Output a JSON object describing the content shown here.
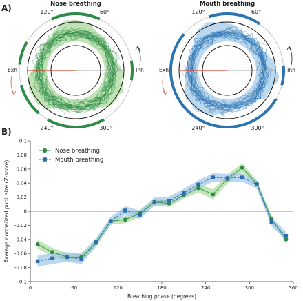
{
  "panel_labels": {
    "a": "A)",
    "b": "B)"
  },
  "polar_panels": [
    {
      "title": "Nose breathing",
      "color": "#2e8b47",
      "fill_color": "#bfe3b4",
      "angle_labels": [
        "120°",
        "60°",
        "240°",
        "300°"
      ],
      "left_label": "Exh",
      "right_label": "Inh",
      "arrow_left_color": "#d9705a",
      "arrow_right_color": "#333333"
    },
    {
      "title": "Mouth breathing",
      "color": "#2b74b3",
      "fill_color": "#bcd8ee",
      "angle_labels": [
        "120°",
        "60°",
        "240°",
        "300°"
      ],
      "left_label": "Exh",
      "right_label": "Inh",
      "arrow_left_color": "#d9705a",
      "arrow_right_color": "#333333"
    }
  ],
  "chart_data": {
    "type": "line",
    "xlabel": "Breathing phase (degrees)",
    "ylabel": "Average normalized pupil size (Z-score)",
    "xlim": [
      0,
      360
    ],
    "ylim": [
      -0.1,
      0.1
    ],
    "x_ticks": [
      0,
      60,
      120,
      180,
      240,
      300,
      360
    ],
    "y_ticks": [
      -0.1,
      -0.08,
      -0.06,
      -0.04,
      -0.02,
      0,
      0.02,
      0.04,
      0.06,
      0.08,
      0.1
    ],
    "y_tick_labels": [
      "-0.1",
      "-0.08",
      "-0.06",
      "-0.04",
      "-0.02",
      "0",
      "0.02",
      "0.04",
      "0.06",
      "0.08",
      "0.1"
    ],
    "zero_line": true,
    "grid": false,
    "legend_position": "top-left",
    "x": [
      10,
      30,
      50,
      70,
      90,
      110,
      130,
      150,
      170,
      190,
      210,
      230,
      250,
      270,
      290,
      310,
      330,
      350
    ],
    "series": [
      {
        "name": "Nose breathing",
        "color": "#2e8b47",
        "band_color": "#a6d99a",
        "marker": "circle",
        "line": "solid",
        "values": [
          -0.047,
          -0.058,
          -0.065,
          -0.065,
          -0.045,
          -0.014,
          -0.012,
          -0.003,
          0.013,
          0.011,
          0.023,
          0.033,
          0.024,
          0.046,
          0.062,
          0.039,
          -0.011,
          -0.04
        ],
        "band": [
          0.006,
          0.006,
          0.006,
          0.006,
          0.005,
          0.005,
          0.005,
          0.005,
          0.005,
          0.005,
          0.005,
          0.006,
          0.007,
          0.006,
          0.006,
          0.005,
          0.005,
          0.005
        ]
      },
      {
        "name": "Mouth breathing",
        "color": "#2b6cb0",
        "band_color": "#9fc8e8",
        "marker": "square",
        "line": "dashed",
        "values": [
          -0.071,
          -0.067,
          -0.065,
          -0.068,
          -0.044,
          -0.014,
          0.001,
          -0.005,
          0.014,
          0.015,
          0.026,
          0.038,
          0.048,
          0.047,
          0.048,
          0.038,
          -0.015,
          -0.035
        ],
        "band": [
          0.008,
          0.008,
          0.007,
          0.007,
          0.006,
          0.006,
          0.006,
          0.006,
          0.006,
          0.006,
          0.006,
          0.006,
          0.006,
          0.006,
          0.006,
          0.006,
          0.006,
          0.006
        ]
      }
    ]
  }
}
